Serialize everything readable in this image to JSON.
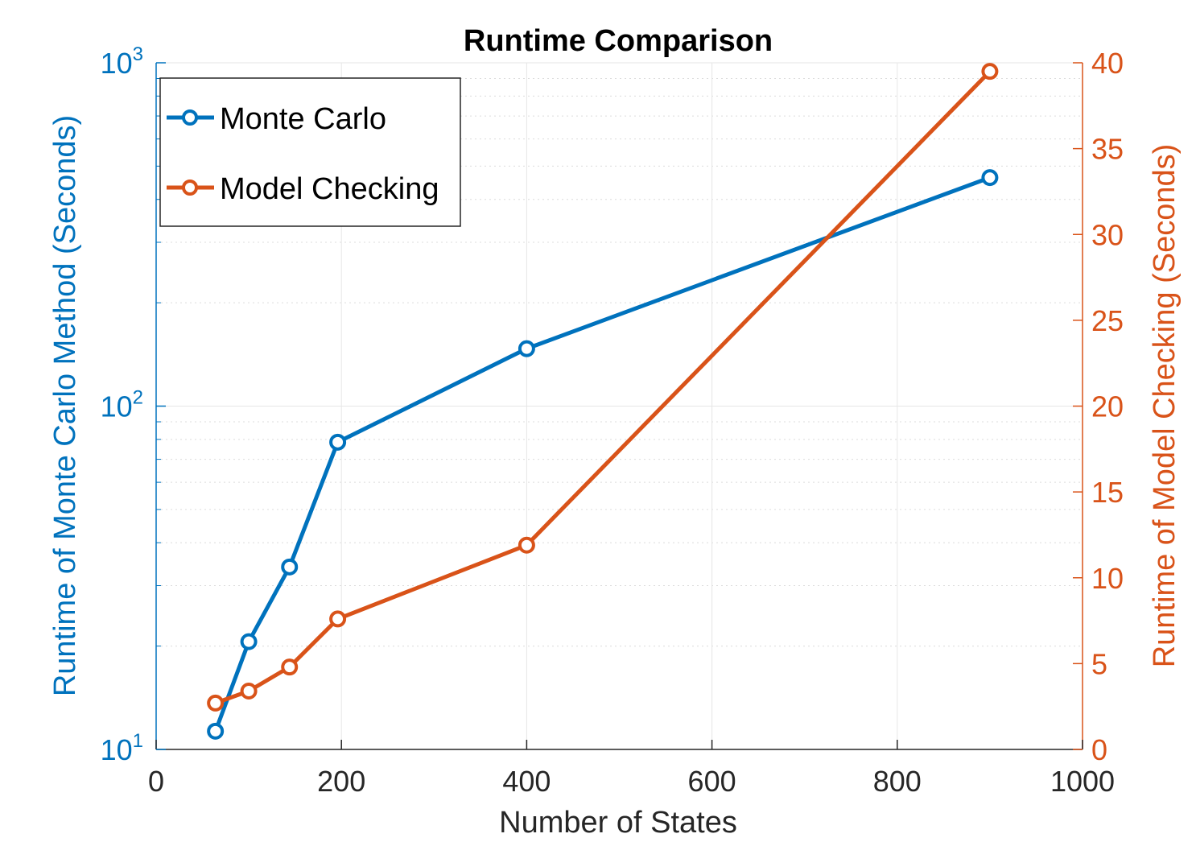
{
  "chart_data": {
    "type": "line",
    "title": "Runtime Comparison",
    "xlabel": "Number of States",
    "ylabel_left": "Runtime of Monte Carlo Method (Seconds)",
    "ylabel_right": "Runtime of Model Checking (Seconds)",
    "xlim": [
      0,
      1000
    ],
    "x_ticks": [
      0,
      200,
      400,
      600,
      800,
      1000
    ],
    "y_left": {
      "scale": "log",
      "lim": [
        10,
        1000
      ],
      "ticks": [
        10,
        100,
        1000
      ],
      "tick_labels": [
        {
          "base": "10",
          "exp": "1"
        },
        {
          "base": "10",
          "exp": "2"
        },
        {
          "base": "10",
          "exp": "3"
        }
      ]
    },
    "y_right": {
      "scale": "linear",
      "lim": [
        0,
        40
      ],
      "ticks": [
        0,
        5,
        10,
        15,
        20,
        25,
        30,
        35,
        40
      ]
    },
    "grid": true,
    "legend_position": "top-left",
    "series": [
      {
        "name": "Monte Carlo",
        "axis": "left",
        "color": "#0072BD",
        "marker": "circle",
        "x": [
          64,
          100,
          144,
          196,
          400,
          900
        ],
        "y": [
          11.3,
          20.6,
          34.0,
          78.5,
          147,
          463
        ]
      },
      {
        "name": "Model Checking",
        "axis": "right",
        "color": "#D95319",
        "marker": "circle",
        "x": [
          64,
          100,
          144,
          196,
          400,
          900
        ],
        "y": [
          2.7,
          3.4,
          4.8,
          7.6,
          11.9,
          39.5
        ]
      }
    ]
  }
}
